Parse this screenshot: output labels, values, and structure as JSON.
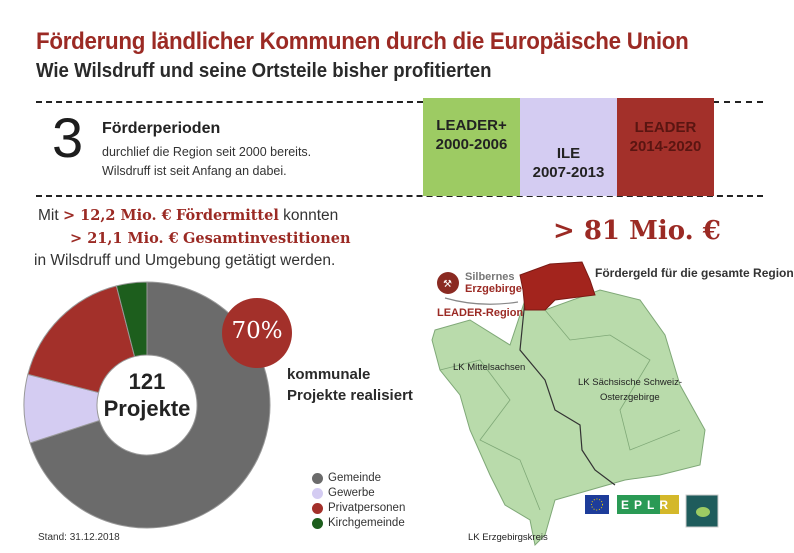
{
  "header": {
    "title": "Förderung ländlicher Kommunen durch die Europäische Union",
    "subtitle": "Wie Wilsdruff und seine Ortsteile bisher profitierten"
  },
  "periods_info": {
    "count": "3",
    "heading": "Förderperioden",
    "line1": "durchlief die Region seit 2000 bereits.",
    "line2": "Wilsdruff ist seit Anfang an dabei."
  },
  "periods": [
    {
      "name": "LEADER+",
      "years": "2000-2006",
      "color": "#9dcb63"
    },
    {
      "name": "ILE",
      "years": "2007-2013",
      "color": "#d4ccf2"
    },
    {
      "name": "LEADER",
      "years": "2014-2020",
      "color": "#a3302a"
    }
  ],
  "funding": {
    "mit": "Mit",
    "amount1": "> 12,2 Mio. €",
    "label1": "Fördermittel",
    "konnten": "konnten",
    "amount2": "> 21,1 Mio. €",
    "label2": "Gesamtinvestitionen",
    "line3": "in Wilsdruff und Umgebung getätigt werden."
  },
  "region": {
    "amount": "> 81 Mio. €",
    "caption": "Fördergeld für die gesamte Region",
    "logo_line1": "Silbernes",
    "logo_line2": "Erzgebirge",
    "logo_line3": "LEADER-Region",
    "labels": [
      "LK Mittelsachsen",
      "LK Sächsische Schweiz-",
      "Osterzgebirge",
      "LK Erzgebirgskreis"
    ],
    "logos": {
      "eplr": "EPLR",
      "leader": "LEADER"
    },
    "map_color": "#b9dbab",
    "highlight_color": "#a3241d"
  },
  "highlight": {
    "percent": "70%",
    "line1": "kommunale",
    "line2": "Projekte realisiert"
  },
  "stand": "Stand: 31.12.2018",
  "chart_data": {
    "type": "pie",
    "donut": true,
    "center_line1": "121",
    "center_line2": "Projekte",
    "categories": [
      "Gemeinde",
      "Gewerbe",
      "Privatpersonen",
      "Kirchgemeinde"
    ],
    "values": [
      70,
      9,
      17,
      4
    ],
    "unit": "%",
    "colors": [
      "#6b6b6b",
      "#d4ccf2",
      "#a3302a",
      "#1d5e1d"
    ],
    "legend": "bottom-right"
  }
}
